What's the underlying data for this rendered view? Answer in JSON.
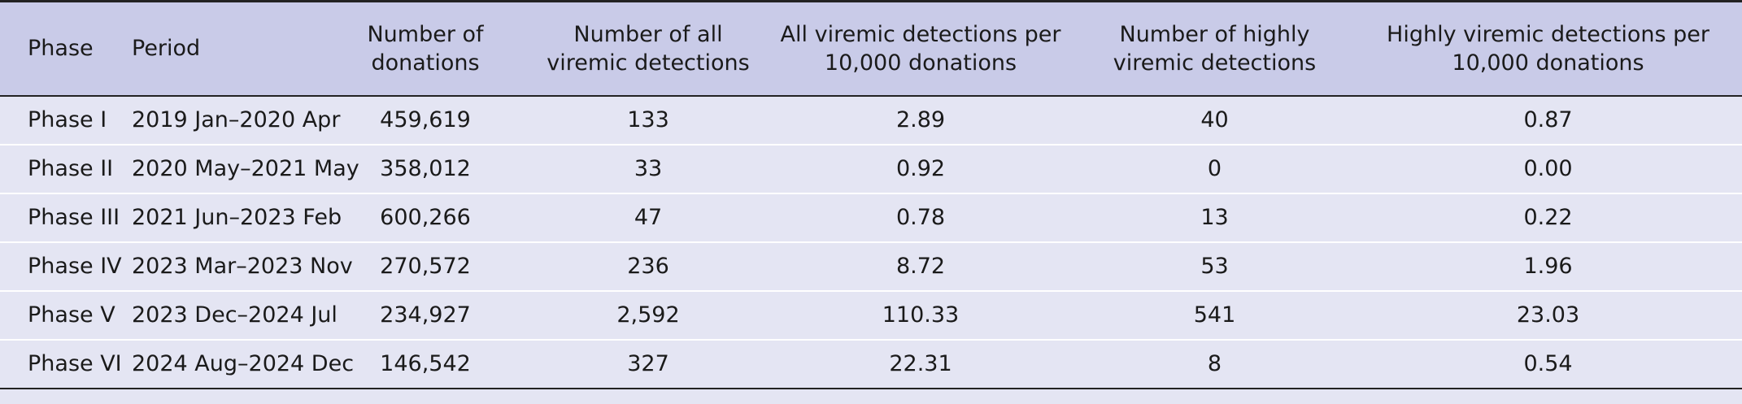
{
  "table": {
    "headers": [
      "Phase",
      "Period",
      "Number of donations",
      "Number of all viremic detections",
      "All viremic detections per 10,000 donations",
      "Number of highly viremic detections",
      "Highly viremic detections per 10,000 donations"
    ],
    "rows": [
      [
        "Phase I",
        "2019 Jan–2020 Apr",
        "459,619",
        "133",
        "2.89",
        "40",
        "0.87"
      ],
      [
        "Phase II",
        "2020 May–2021 May",
        "358,012",
        "33",
        "0.92",
        "0",
        "0.00"
      ],
      [
        "Phase III",
        "2021 Jun–2023 Feb",
        "600,266",
        "47",
        "0.78",
        "13",
        "0.22"
      ],
      [
        "Phase IV",
        "2023 Mar–2023 Nov",
        "270,572",
        "236",
        "8.72",
        "53",
        "1.96"
      ],
      [
        "Phase V",
        "2023 Dec–2024 Jul",
        "234,927",
        "2,592",
        "110.33",
        "541",
        "23.03"
      ],
      [
        "Phase VI",
        "2024 Aug–2024 Dec",
        "146,542",
        "327",
        "22.31",
        "8",
        "0.54"
      ]
    ]
  }
}
